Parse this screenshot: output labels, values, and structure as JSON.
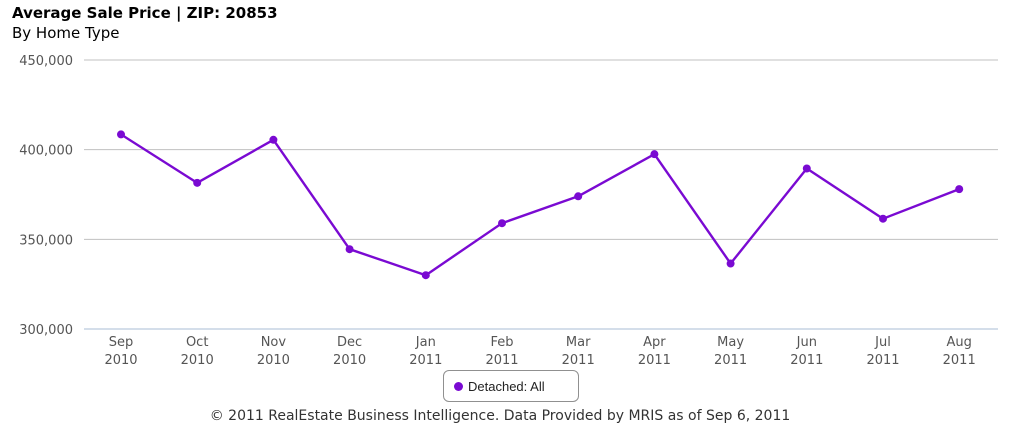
{
  "chart_data": {
    "type": "line",
    "title": "Average Sale Price | ZIP: 20853",
    "subtitle": "By Home Type",
    "categories": [
      [
        "Sep",
        "2010"
      ],
      [
        "Oct",
        "2010"
      ],
      [
        "Nov",
        "2010"
      ],
      [
        "Dec",
        "2010"
      ],
      [
        "Jan",
        "2011"
      ],
      [
        "Feb",
        "2011"
      ],
      [
        "Mar",
        "2011"
      ],
      [
        "Apr",
        "2011"
      ],
      [
        "May",
        "2011"
      ],
      [
        "Jun",
        "2011"
      ],
      [
        "Jul",
        "2011"
      ],
      [
        "Aug",
        "2011"
      ]
    ],
    "series": [
      {
        "name": "Detached: All",
        "color": "#7a0ad2",
        "values": [
          408500,
          381500,
          405500,
          344500,
          330000,
          359000,
          374000,
          397500,
          336500,
          389500,
          361500,
          378000
        ]
      }
    ],
    "ylim": [
      300000,
      450000
    ],
    "yticks": [
      300000,
      350000,
      400000,
      450000
    ],
    "ytick_labels": [
      "300,000",
      "350,000",
      "400,000",
      "450,000"
    ],
    "grid": true,
    "legend_position": "bottom-center",
    "xlabel": "",
    "ylabel": ""
  },
  "footer": {
    "credit": "© 2011 RealEstate Business Intelligence. Data Provided by MRIS as of Sep 6, 2011"
  }
}
